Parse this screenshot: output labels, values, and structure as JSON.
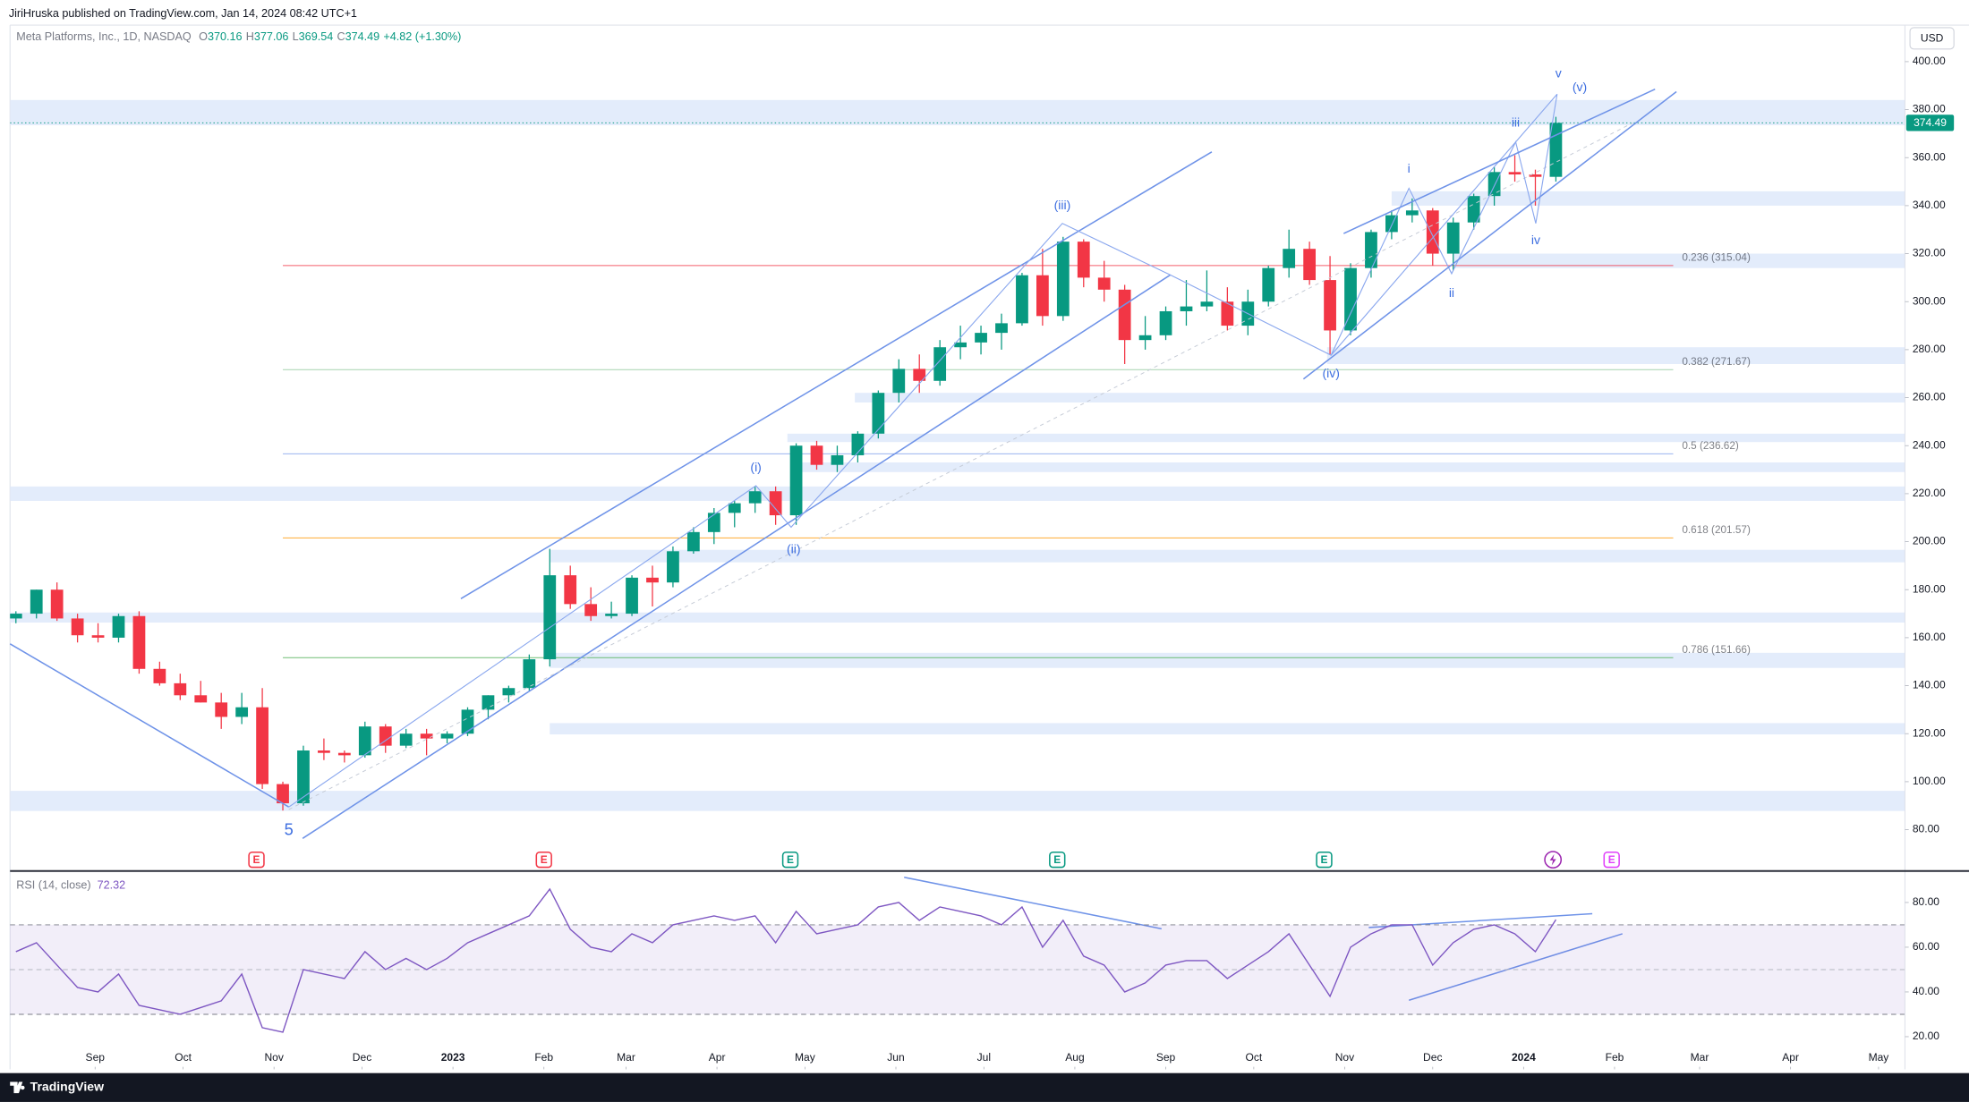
{
  "header": {
    "publisher": "JiriHruska published on TradingView.com, Jan 14, 2024 08:42 UTC+1",
    "brand": "TradingView"
  },
  "chart_data": [
    {
      "type": "candlestick",
      "legend": {
        "symbol": "Meta Platforms, Inc., 1D, NASDAQ",
        "ohlc": [
          {
            "key": "O",
            "value": 370.16
          },
          {
            "key": "H",
            "value": 377.06
          },
          {
            "key": "L",
            "value": 369.54
          },
          {
            "key": "C",
            "value": 374.49
          }
        ],
        "change": "+4.82 (+1.30%)",
        "color": "#089981"
      },
      "currency": "USD",
      "up_color": "#089981",
      "down_color": "#f23645",
      "dates": [
        "2022-08-05",
        "2022-08-12",
        "2022-08-19",
        "2022-08-26",
        "2022-09-02",
        "2022-09-09",
        "2022-09-16",
        "2022-09-23",
        "2022-09-30",
        "2022-10-07",
        "2022-10-14",
        "2022-10-21",
        "2022-10-28",
        "2022-11-04",
        "2022-11-11",
        "2022-11-18",
        "2022-11-25",
        "2022-12-02",
        "2022-12-09",
        "2022-12-16",
        "2022-12-23",
        "2022-12-30",
        "2023-01-06",
        "2023-01-13",
        "2023-01-20",
        "2023-01-27",
        "2023-02-03",
        "2023-02-10",
        "2023-02-17",
        "2023-02-24",
        "2023-03-03",
        "2023-03-10",
        "2023-03-17",
        "2023-03-24",
        "2023-03-31",
        "2023-04-07",
        "2023-04-14",
        "2023-04-21",
        "2023-04-28",
        "2023-05-05",
        "2023-05-12",
        "2023-05-19",
        "2023-05-26",
        "2023-06-02",
        "2023-06-09",
        "2023-06-16",
        "2023-06-23",
        "2023-06-30",
        "2023-07-07",
        "2023-07-14",
        "2023-07-21",
        "2023-07-28",
        "2023-08-04",
        "2023-08-11",
        "2023-08-18",
        "2023-08-25",
        "2023-09-01",
        "2023-09-08",
        "2023-09-15",
        "2023-09-22",
        "2023-09-29",
        "2023-10-06",
        "2023-10-13",
        "2023-10-20",
        "2023-10-27",
        "2023-11-03",
        "2023-11-10",
        "2023-11-17",
        "2023-11-24",
        "2023-12-01",
        "2023-12-08",
        "2023-12-15",
        "2023-12-22",
        "2023-12-29",
        "2024-01-05",
        "2024-01-12"
      ],
      "open": [
        168,
        170,
        180,
        168,
        161,
        160,
        169,
        147,
        141,
        136,
        133,
        127,
        131,
        99,
        91,
        113,
        112,
        111,
        123,
        115,
        120,
        118,
        120,
        130,
        136,
        139,
        151,
        186,
        174,
        169,
        170,
        185,
        183,
        196,
        204,
        212,
        216,
        221,
        211,
        240,
        232,
        236,
        245,
        262,
        272,
        267,
        281,
        283,
        287,
        291,
        311,
        294,
        325,
        310,
        305,
        284,
        286,
        296,
        298,
        300,
        290,
        300,
        314,
        322,
        309,
        288,
        314,
        329,
        336,
        338,
        320,
        333,
        344,
        354,
        353,
        352
      ],
      "high": [
        171,
        180,
        183,
        170,
        166,
        170,
        171,
        150,
        145,
        142,
        137,
        137,
        139,
        100,
        115,
        118,
        113,
        125,
        124,
        122,
        122,
        121,
        131,
        136,
        140,
        153,
        197,
        190,
        181,
        175,
        186,
        190,
        198,
        206,
        214,
        217,
        223,
        223,
        241,
        242,
        240,
        246,
        263,
        276,
        278,
        284,
        290,
        290,
        295,
        312,
        322,
        327,
        326,
        317,
        307,
        294,
        298,
        309,
        313,
        306,
        305,
        315,
        330,
        325,
        319,
        316,
        330,
        338,
        343,
        339,
        335,
        345,
        356,
        361,
        355,
        377
      ],
      "low": [
        166,
        168,
        167,
        158,
        158,
        158,
        145,
        140,
        134,
        133,
        122,
        124,
        97,
        88,
        90,
        109,
        108,
        110,
        112,
        114,
        111,
        116,
        119,
        126,
        133,
        138,
        148,
        172,
        167,
        168,
        169,
        173,
        181,
        195,
        199,
        206,
        212,
        207,
        207,
        230,
        229,
        233,
        243,
        258,
        262,
        265,
        276,
        278,
        280,
        290,
        290,
        292,
        306,
        300,
        274,
        280,
        284,
        290,
        296,
        288,
        286,
        298,
        310,
        307,
        278,
        286,
        310,
        326,
        333,
        315,
        313,
        330,
        340,
        350,
        340,
        350
      ],
      "close": [
        170,
        180,
        168,
        161,
        160,
        169,
        147,
        141,
        136,
        133,
        127,
        131,
        99,
        91,
        113,
        112,
        111,
        123,
        115,
        120,
        118,
        120,
        130,
        136,
        139,
        151,
        186,
        174,
        169,
        170,
        185,
        183,
        196,
        204,
        212,
        216,
        221,
        211,
        240,
        232,
        236,
        245,
        262,
        272,
        267,
        281,
        283,
        287,
        291,
        311,
        294,
        325,
        310,
        305,
        284,
        286,
        296,
        298,
        300,
        290,
        300,
        314,
        322,
        309,
        288,
        314,
        329,
        336,
        338,
        320,
        333,
        344,
        354,
        353,
        352,
        374.49
      ],
      "xlim": [
        "2022-08-03",
        "2024-05-10"
      ],
      "xticks": [
        {
          "value": "2022-09-01",
          "label": "Sep"
        },
        {
          "value": "2022-10-01",
          "label": "Oct"
        },
        {
          "value": "2022-11-01",
          "label": "Nov"
        },
        {
          "value": "2022-12-01",
          "label": "Dec"
        },
        {
          "value": "2023-01-01",
          "label": "2023"
        },
        {
          "value": "2023-02-01",
          "label": "Feb"
        },
        {
          "value": "2023-03-01",
          "label": "Mar"
        },
        {
          "value": "2023-04-01",
          "label": "Apr"
        },
        {
          "value": "2023-05-01",
          "label": "May"
        },
        {
          "value": "2023-06-01",
          "label": "Jun"
        },
        {
          "value": "2023-07-01",
          "label": "Jul"
        },
        {
          "value": "2023-08-01",
          "label": "Aug"
        },
        {
          "value": "2023-09-01",
          "label": "Sep"
        },
        {
          "value": "2023-10-01",
          "label": "Oct"
        },
        {
          "value": "2023-11-01",
          "label": "Nov"
        },
        {
          "value": "2023-12-01",
          "label": "Dec"
        },
        {
          "value": "2024-01-01",
          "label": "2024"
        },
        {
          "value": "2024-02-01",
          "label": "Feb"
        },
        {
          "value": "2024-03-01",
          "label": "Mar"
        },
        {
          "value": "2024-04-01",
          "label": "Apr"
        },
        {
          "value": "2024-05-01",
          "label": "May"
        }
      ],
      "ylim": [
        63.3,
        415.2
      ],
      "yticks": [
        {
          "value": 80,
          "label": "80.00"
        },
        {
          "value": 100,
          "label": "100.00"
        },
        {
          "value": 120,
          "label": "120.00"
        },
        {
          "value": 140,
          "label": "140.00"
        },
        {
          "value": 160,
          "label": "160.00"
        },
        {
          "value": 180,
          "label": "180.00"
        },
        {
          "value": 200,
          "label": "200.00"
        },
        {
          "value": 220,
          "label": "220.00"
        },
        {
          "value": 240,
          "label": "240.00"
        },
        {
          "value": 260,
          "label": "260.00"
        },
        {
          "value": 280,
          "label": "280.00"
        },
        {
          "value": 300,
          "label": "300.00"
        },
        {
          "value": 320,
          "label": "320.00"
        },
        {
          "value": 340,
          "label": "340.00"
        },
        {
          "value": 360,
          "label": "360.00"
        },
        {
          "value": 380,
          "label": "380.00"
        },
        {
          "value": 400,
          "label": "400.00"
        }
      ],
      "grid": false,
      "zone_color": "#e3ecfb",
      "zones": [
        {
          "low": 373.5,
          "high": 384
        },
        {
          "from": "2023-11-17",
          "low": 340,
          "high": 346
        },
        {
          "from": "2023-12-08",
          "low": 314,
          "high": 320
        },
        {
          "from": "2023-10-26",
          "low": 274,
          "high": 281
        },
        {
          "from": "2023-05-18",
          "low": 258,
          "high": 262
        },
        {
          "from": "2023-04-25",
          "low": 241.5,
          "high": 245
        },
        {
          "from": "2023-04-30",
          "low": 229,
          "high": 233
        },
        {
          "low": 217,
          "high": 223
        },
        {
          "from": "2023-02-03",
          "low": 191.4,
          "high": 196.6
        },
        {
          "low": 166.3,
          "high": 170.5
        },
        {
          "from": "2023-02-03",
          "low": 147.4,
          "high": 153.7
        },
        {
          "from": "2023-02-03",
          "low": 119.7,
          "high": 124.4
        },
        {
          "low": 87.8,
          "high": 96.2
        }
      ],
      "fib": {
        "from": "2022-11-04",
        "to": "2024-02-21",
        "levels": [
          {
            "value": 315.04,
            "label": "0.236 (315.04)",
            "color": "#f23645"
          },
          {
            "value": 271.67,
            "label": "0.382 (271.67)",
            "color": "#8fc79a"
          },
          {
            "value": 236.62,
            "label": "0.5 (236.62)",
            "color": "#6f93e8"
          },
          {
            "value": 201.57,
            "label": "0.618 (201.57)",
            "color": "#ff9800"
          },
          {
            "value": 151.66,
            "label": "0.786 (151.66)",
            "color": "#4caf50"
          }
        ]
      },
      "waves": [
        "5",
        "(i)",
        "(ii)",
        "(iii)",
        "(iv)",
        "(v)",
        "i",
        "ii",
        "iii",
        "iv",
        "v"
      ],
      "events": [
        {
          "date": "2022-10-26",
          "label": "E",
          "color": "#f23645"
        },
        {
          "date": "2023-02-01",
          "label": "E",
          "color": "#f23645"
        },
        {
          "date": "2023-04-26",
          "label": "E",
          "color": "#089981"
        },
        {
          "date": "2023-07-26",
          "label": "E",
          "color": "#089981"
        },
        {
          "date": "2023-10-25",
          "label": "E",
          "color": "#089981"
        },
        {
          "date": "2024-01-11",
          "color": "#9c27b0"
        },
        {
          "date": "2024-01-31",
          "label": "E",
          "color": "#e040fb"
        }
      ]
    },
    {
      "type": "line",
      "title": "RSI (14, close)",
      "last": 72.32,
      "color": "#7e57c2",
      "values": [
        58,
        62,
        52,
        42,
        40,
        48,
        34,
        32,
        30,
        33,
        36,
        48,
        24,
        22,
        50,
        48,
        46,
        58,
        50,
        55,
        50,
        55,
        62,
        66,
        70,
        74,
        86,
        68,
        60,
        58,
        66,
        62,
        70,
        72,
        74,
        72,
        74,
        62,
        76,
        66,
        68,
        70,
        78,
        80,
        72,
        78,
        76,
        74,
        70,
        78,
        60,
        72,
        56,
        52,
        40,
        44,
        52,
        54,
        54,
        46,
        52,
        58,
        66,
        52,
        38,
        60,
        66,
        70,
        70,
        52,
        62,
        68,
        70,
        66,
        58,
        72.32
      ],
      "ylim": [
        5.4,
        93.5
      ],
      "yticks": [
        {
          "value": 20,
          "label": "20.00"
        },
        {
          "value": 40,
          "label": "40.00"
        },
        {
          "value": 60,
          "label": "60.00"
        },
        {
          "value": 80,
          "label": "80.00"
        }
      ],
      "band": [
        30,
        70
      ],
      "midline": 50
    }
  ]
}
